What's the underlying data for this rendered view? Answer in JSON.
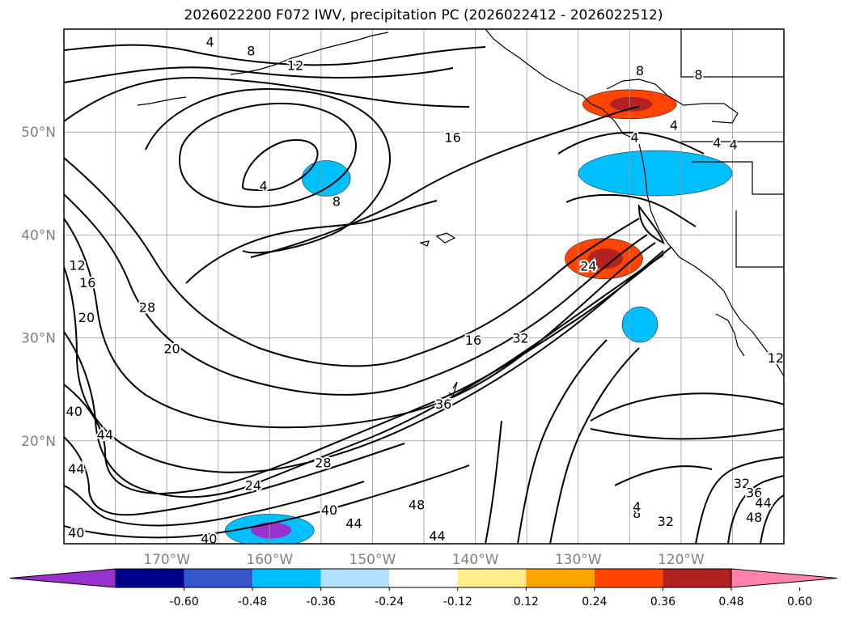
{
  "chart_data": {
    "type": "contour",
    "title": "2026022200 F072 IWV, precipitation PC (2026022412 - 2026022512)",
    "lon_range": [
      -180,
      -110
    ],
    "lat_range": [
      10,
      60
    ],
    "lat_ticks": [
      "50°N",
      "40°N",
      "30°N",
      "20°N"
    ],
    "lat_values": [
      50,
      40,
      30,
      20
    ],
    "lon_ticks": [
      "170°W",
      "160°W",
      "150°W",
      "140°W",
      "130°W",
      "120°W"
    ],
    "lon_values": [
      -170,
      -160,
      -150,
      -140,
      -130,
      -120
    ],
    "contour_interval": 4,
    "contour_labels": [
      {
        "text": "4",
        "lon": -165.8,
        "lat": 58.8
      },
      {
        "text": "8",
        "lon": -161.8,
        "lat": 57.9
      },
      {
        "text": "12",
        "lon": -157.5,
        "lat": 56.5
      },
      {
        "text": "16",
        "lon": -142.2,
        "lat": 49.5
      },
      {
        "text": "4",
        "lon": -160.6,
        "lat": 44.8
      },
      {
        "text": "8",
        "lon": -153.5,
        "lat": 43.3
      },
      {
        "text": "8",
        "lon": -124.0,
        "lat": 56.0
      },
      {
        "text": "8",
        "lon": -118.3,
        "lat": 55.6
      },
      {
        "text": "4",
        "lon": -120.7,
        "lat": 50.7
      },
      {
        "text": "4",
        "lon": -124.5,
        "lat": 49.5
      },
      {
        "text": "4",
        "lon": -116.5,
        "lat": 49.0
      },
      {
        "text": "4",
        "lon": -114.9,
        "lat": 48.8
      },
      {
        "text": "12",
        "lon": -178.7,
        "lat": 37.1
      },
      {
        "text": "16",
        "lon": -177.7,
        "lat": 35.4
      },
      {
        "text": "20",
        "lon": -177.8,
        "lat": 32.0
      },
      {
        "text": "28",
        "lon": -171.9,
        "lat": 33.0
      },
      {
        "text": "20",
        "lon": -169.5,
        "lat": 29.0
      },
      {
        "text": "16",
        "lon": -140.2,
        "lat": 29.8
      },
      {
        "text": "32",
        "lon": -135.6,
        "lat": 30.0
      },
      {
        "text": "24",
        "lon": -129.0,
        "lat": 37.0
      },
      {
        "text": "40",
        "lon": -179.0,
        "lat": 22.9
      },
      {
        "text": "44",
        "lon": -176.0,
        "lat": 20.6
      },
      {
        "text": "44",
        "lon": -178.8,
        "lat": 17.3
      },
      {
        "text": "36",
        "lon": -143.1,
        "lat": 23.6
      },
      {
        "text": "28",
        "lon": -154.8,
        "lat": 17.9
      },
      {
        "text": "24",
        "lon": -161.6,
        "lat": 15.7
      },
      {
        "text": "40",
        "lon": -154.2,
        "lat": 13.3
      },
      {
        "text": "44",
        "lon": -151.8,
        "lat": 12.0
      },
      {
        "text": "48",
        "lon": -145.7,
        "lat": 13.8
      },
      {
        "text": "44",
        "lon": -143.7,
        "lat": 10.8
      },
      {
        "text": "40",
        "lon": -178.8,
        "lat": 11.1
      },
      {
        "text": "40",
        "lon": -165.9,
        "lat": 10.5
      },
      {
        "text": "12",
        "lon": -110.8,
        "lat": 28.1
      },
      {
        "text": "32",
        "lon": -114.1,
        "lat": 15.9
      },
      {
        "text": "36",
        "lon": -112.9,
        "lat": 15.0
      },
      {
        "text": "44",
        "lon": -112.0,
        "lat": 14.0
      },
      {
        "text": "48",
        "lon": -112.9,
        "lat": 12.6
      },
      {
        "text": "32",
        "lon": -121.5,
        "lat": 12.2
      },
      {
        "text": "8",
        "lon": -124.3,
        "lat": 13.0
      },
      {
        "text": "4",
        "lon": -124.3,
        "lat": 13.6
      }
    ],
    "colorbar": {
      "ticks": [
        "-0.60",
        "-0.48",
        "-0.36",
        "-0.24",
        "-0.12",
        "0.12",
        "0.24",
        "0.36",
        "0.48",
        "0.60"
      ],
      "colors": [
        "#9932cc",
        "#00008b",
        "#3356cc",
        "#00bfff",
        "#b0e2ff",
        "#ffffff",
        "#ffec8b",
        "#ffa500",
        "#ff4500",
        "#b22222",
        "#ff82ab"
      ],
      "extend": "both"
    },
    "shaded_regions": [
      {
        "name": "NW Pacific coast negative core",
        "lon": -121.5,
        "lat": 46.5,
        "rx": 34,
        "ry": 16,
        "value": -0.54
      },
      {
        "name": "Pacific NW negative band",
        "lon": -122.5,
        "lat": 46,
        "rx": 95,
        "ry": 28,
        "value": -0.3
      },
      {
        "name": "BC positive",
        "lon": -125,
        "lat": 52.7,
        "rx": 58,
        "ry": 18,
        "value": 0.38
      },
      {
        "name": "California positive",
        "lon": -127.5,
        "lat": 37.7,
        "rx": 48,
        "ry": 25,
        "value": 0.4
      },
      {
        "name": "NE Pacific negative",
        "lon": -154.5,
        "lat": 45.5,
        "rx": 30,
        "ry": 22,
        "value": -0.28
      },
      {
        "name": "offshore negative",
        "lon": -124,
        "lat": 31.3,
        "rx": 22,
        "ry": 22,
        "value": -0.26
      },
      {
        "name": "south negative",
        "lon": -160,
        "lat": 11.3,
        "rx": 55,
        "ry": 20,
        "value": -0.35
      }
    ]
  }
}
